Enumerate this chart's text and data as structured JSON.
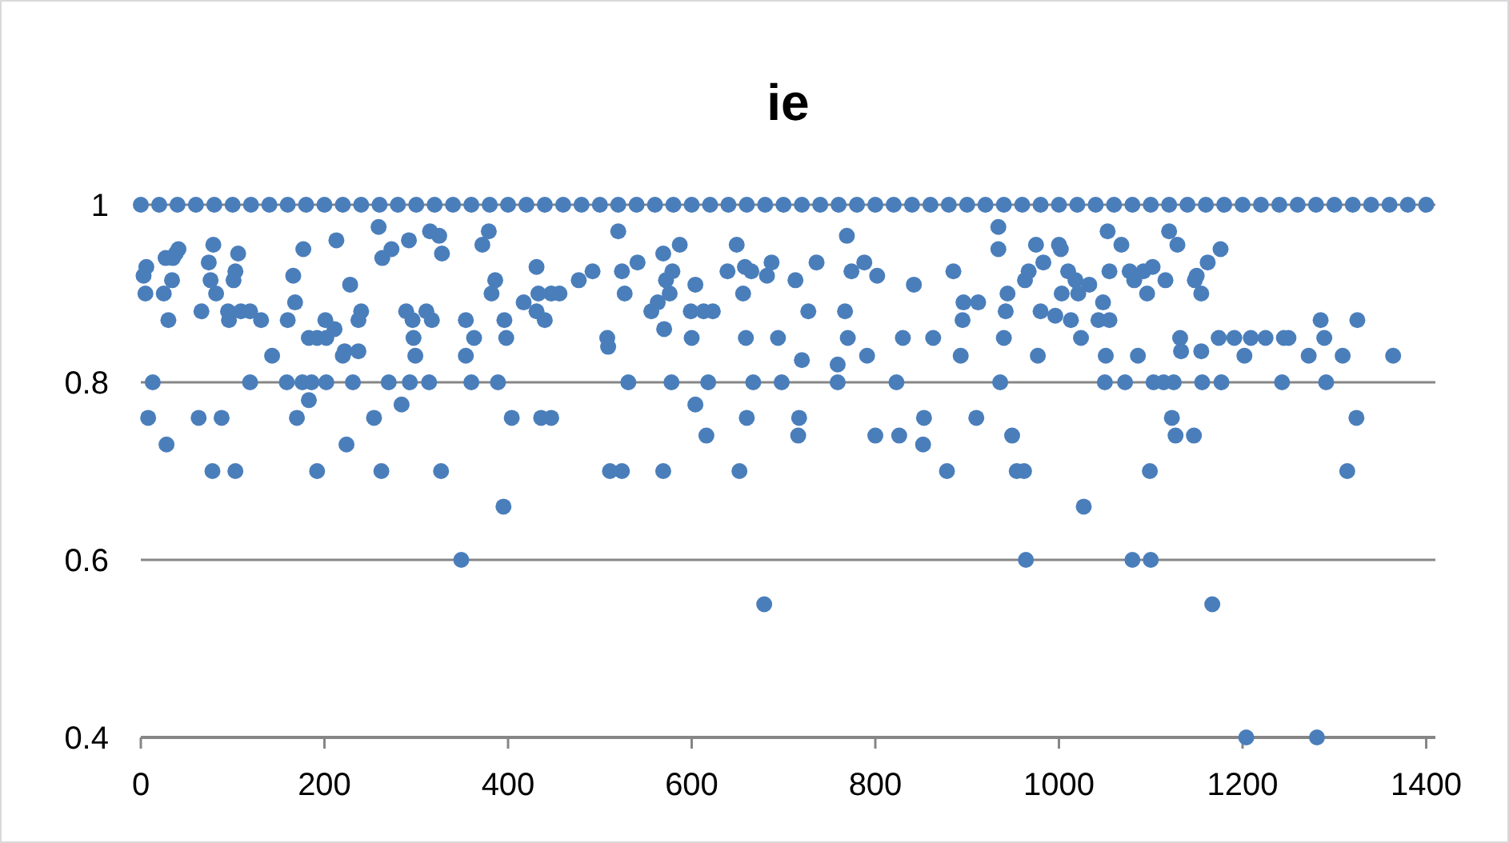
{
  "chart_data": {
    "type": "scatter",
    "title": "ie",
    "xlim": [
      0,
      1410
    ],
    "xticks": [
      0,
      200,
      400,
      600,
      800,
      1000,
      1200,
      1400
    ],
    "ylim": [
      0.4,
      1
    ],
    "yticks": [
      0.4,
      0.6,
      0.8,
      1
    ],
    "grid": "y",
    "marker": "circle",
    "series": [
      {
        "color": "#4a7ebb",
        "x": [
          0,
          20,
          40,
          60,
          80,
          100,
          120,
          140,
          160,
          180,
          200,
          220,
          240,
          260,
          280,
          300,
          320,
          340,
          360,
          380,
          400,
          420,
          440,
          460,
          480,
          500,
          520,
          540,
          560,
          580,
          600,
          620,
          640,
          660,
          680,
          700,
          720,
          740,
          760,
          780,
          800,
          820,
          840,
          860,
          880,
          900,
          920,
          940,
          960,
          980,
          1000,
          1020,
          1040,
          1060,
          1080,
          1100,
          1120,
          1140,
          1160,
          1180,
          1200,
          1220,
          1240,
          1260,
          1280,
          1300,
          1320,
          1340,
          1360,
          1380,
          1400,
          3,
          6,
          5,
          8,
          13,
          25,
          28,
          27,
          30,
          34,
          35,
          38,
          41,
          63,
          66,
          74,
          76,
          79,
          78,
          82,
          88,
          95,
          96,
          101,
          103,
          106,
          103,
          109,
          119,
          119,
          131,
          143,
          159,
          160,
          166,
          168,
          170,
          177,
          176,
          183,
          183,
          186,
          192,
          192,
          201,
          202,
          202,
          211,
          213,
          220,
          222,
          224,
          228,
          231,
          237,
          237,
          240,
          254,
          259,
          262,
          263,
          270,
          273,
          284,
          289,
          292,
          296,
          297,
          299,
          293,
          311,
          315,
          314,
          317,
          325,
          327,
          328,
          349,
          354,
          354,
          360,
          363,
          372,
          379,
          382,
          386,
          389,
          395,
          396,
          398,
          404,
          417,
          431,
          431,
          433,
          440,
          436,
          447,
          447,
          456,
          477,
          492,
          508,
          509,
          511,
          520,
          524,
          524,
          527,
          531,
          541,
          556,
          563,
          569,
          570,
          569,
          572,
          576,
          579,
          578,
          587,
          599,
          600,
          604,
          604,
          613,
          616,
          618,
          623,
          639,
          649,
          652,
          656,
          658,
          659,
          660,
          665,
          667,
          679,
          682,
          687,
          694,
          698,
          713,
          717,
          716,
          720,
          727,
          736,
          759,
          759,
          767,
          769,
          770,
          774,
          788,
          791,
          800,
          802,
          823,
          826,
          830,
          842,
          853,
          852,
          863,
          878,
          885,
          893,
          895,
          896,
          910,
          912,
          934,
          934,
          936,
          944,
          942,
          940,
          949,
          954,
          962,
          964,
          963,
          967,
          975,
          977,
          980,
          983,
          996,
          1000,
          1002,
          1003,
          1010,
          1013,
          1018,
          1021,
          1024,
          1027,
          1033,
          1043,
          1048,
          1051,
          1050,
          1053,
          1055,
          1055,
          1068,
          1072,
          1077,
          1080,
          1082,
          1086,
          1092,
          1096,
          1099,
          1100,
          1102,
          1103,
          1114,
          1116,
          1120,
          1123,
          1125,
          1127,
          1129,
          1132,
          1133,
          1147,
          1150,
          1148,
          1155,
          1155,
          1156,
          1162,
          1167,
          1176,
          1174,
          1177,
          1191,
          1202,
          1204,
          1209,
          1225,
          1243,
          1245,
          1250,
          1272,
          1281,
          1285,
          1289,
          1291,
          1309,
          1314,
          1325,
          1324,
          1364
        ],
        "values": [
          1,
          1,
          1,
          1,
          1,
          1,
          1,
          1,
          1,
          1,
          1,
          1,
          1,
          1,
          1,
          1,
          1,
          1,
          1,
          1,
          1,
          1,
          1,
          1,
          1,
          1,
          1,
          1,
          1,
          1,
          1,
          1,
          1,
          1,
          1,
          1,
          1,
          1,
          1,
          1,
          1,
          1,
          1,
          1,
          1,
          1,
          1,
          1,
          1,
          1,
          1,
          1,
          1,
          1,
          1,
          1,
          1,
          1,
          1,
          1,
          1,
          1,
          1,
          1,
          1,
          1,
          1,
          1,
          1,
          1,
          1,
          0.92,
          0.93,
          0.9,
          0.76,
          0.8,
          0.9,
          0.73,
          0.94,
          0.87,
          0.915,
          0.94,
          0.945,
          0.95,
          0.76,
          0.88,
          0.935,
          0.915,
          0.955,
          0.7,
          0.9,
          0.76,
          0.88,
          0.87,
          0.915,
          0.925,
          0.945,
          0.7,
          0.88,
          0.88,
          0.8,
          0.87,
          0.83,
          0.8,
          0.87,
          0.92,
          0.89,
          0.76,
          0.95,
          0.8,
          0.85,
          0.78,
          0.8,
          0.7,
          0.85,
          0.87,
          0.8,
          0.85,
          0.86,
          0.96,
          0.83,
          0.835,
          0.73,
          0.91,
          0.8,
          0.835,
          0.87,
          0.88,
          0.76,
          0.975,
          0.7,
          0.94,
          0.8,
          0.95,
          0.775,
          0.88,
          0.96,
          0.87,
          0.85,
          0.83,
          0.8,
          0.88,
          0.97,
          0.8,
          0.87,
          0.965,
          0.7,
          0.945,
          0.6,
          0.87,
          0.83,
          0.8,
          0.85,
          0.955,
          0.97,
          0.9,
          0.915,
          0.8,
          0.66,
          0.87,
          0.85,
          0.76,
          0.89,
          0.93,
          0.88,
          0.9,
          0.87,
          0.76,
          0.9,
          0.76,
          0.9,
          0.915,
          0.925,
          0.85,
          0.84,
          0.7,
          0.97,
          0.925,
          0.7,
          0.9,
          0.8,
          0.935,
          0.88,
          0.89,
          0.945,
          0.86,
          0.7,
          0.915,
          0.9,
          0.925,
          0.8,
          0.955,
          0.88,
          0.85,
          0.91,
          0.775,
          0.88,
          0.74,
          0.8,
          0.88,
          0.925,
          0.955,
          0.7,
          0.9,
          0.93,
          0.85,
          0.76,
          0.925,
          0.8,
          0.55,
          0.92,
          0.935,
          0.85,
          0.8,
          0.915,
          0.76,
          0.74,
          0.825,
          0.88,
          0.935,
          0.8,
          0.82,
          0.88,
          0.965,
          0.85,
          0.925,
          0.935,
          0.83,
          0.74,
          0.92,
          0.8,
          0.74,
          0.85,
          0.91,
          0.76,
          0.73,
          0.85,
          0.7,
          0.925,
          0.83,
          0.87,
          0.89,
          0.76,
          0.89,
          0.975,
          0.95,
          0.8,
          0.9,
          0.88,
          0.85,
          0.74,
          0.7,
          0.7,
          0.6,
          0.915,
          0.925,
          0.955,
          0.83,
          0.88,
          0.935,
          0.875,
          0.955,
          0.95,
          0.9,
          0.925,
          0.87,
          0.915,
          0.9,
          0.85,
          0.66,
          0.91,
          0.87,
          0.89,
          0.83,
          0.8,
          0.97,
          0.925,
          0.87,
          0.955,
          0.8,
          0.925,
          0.6,
          0.915,
          0.83,
          0.925,
          0.9,
          0.7,
          0.6,
          0.93,
          0.8,
          0.8,
          0.915,
          0.97,
          0.76,
          0.8,
          0.74,
          0.955,
          0.85,
          0.835,
          0.74,
          0.92,
          0.915,
          0.9,
          0.835,
          0.8,
          0.935,
          0.55,
          0.95,
          0.85,
          0.8,
          0.85,
          0.83,
          0.4,
          0.85,
          0.85,
          0.8,
          0.85,
          0.85,
          0.83,
          0.4,
          0.87,
          0.85,
          0.8,
          0.83,
          0.7,
          0.87,
          0.76,
          0.83
        ]
      }
    ]
  }
}
